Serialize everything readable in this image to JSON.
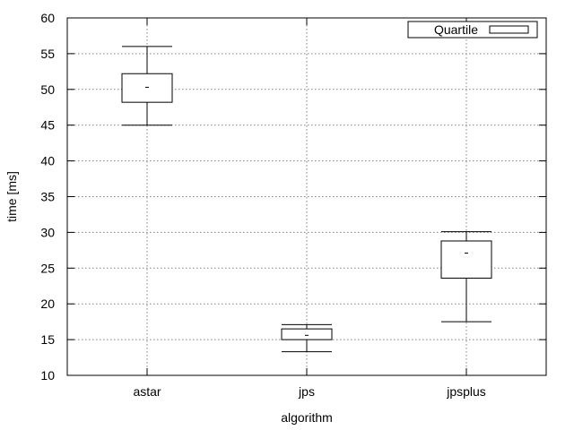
{
  "chart_data": {
    "type": "box",
    "title": "",
    "xlabel": "algorithm",
    "ylabel": "time [ms]",
    "categories": [
      "astar",
      "jps",
      "jpsplus"
    ],
    "ylim": [
      10,
      60
    ],
    "yticks": [
      10,
      15,
      20,
      25,
      30,
      35,
      40,
      45,
      50,
      55,
      60
    ],
    "grid": true,
    "legend": {
      "label": "Quartile",
      "placement": "top-right"
    },
    "series": [
      {
        "boxes": [
          {
            "category": "astar",
            "min": 45.0,
            "q1": 48.2,
            "median": 50.3,
            "q3": 52.2,
            "max": 56.0
          },
          {
            "category": "jps",
            "min": 13.3,
            "q1": 15.0,
            "median": 15.6,
            "q3": 16.5,
            "max": 17.1
          },
          {
            "category": "jpsplus",
            "min": 17.5,
            "q1": 23.6,
            "median": 27.1,
            "q3": 28.8,
            "max": 30.1
          }
        ]
      }
    ]
  }
}
